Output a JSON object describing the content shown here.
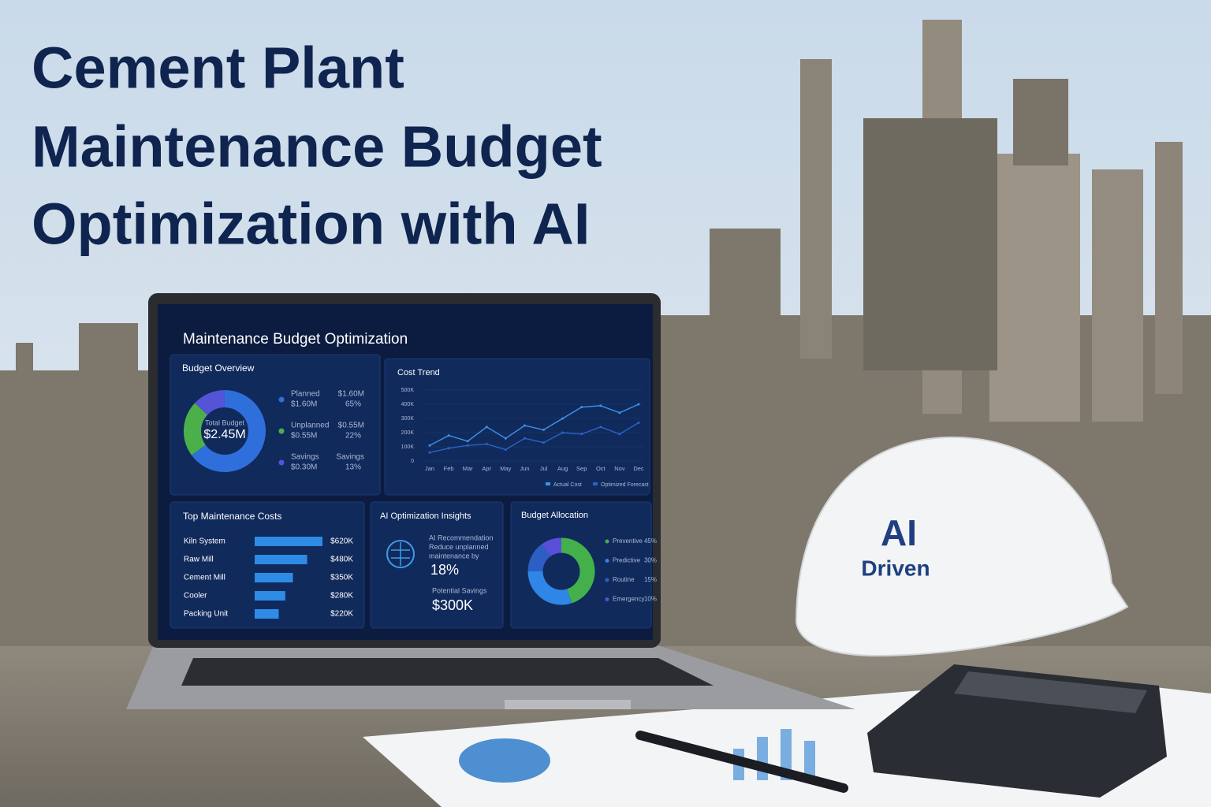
{
  "header": {
    "title_lines": [
      "Cement Plant",
      "Maintenance Budget",
      "Optimization with AI"
    ]
  },
  "dashboard": {
    "title": "Maintenance Budget Optimization",
    "budget_overview": {
      "type": "donut",
      "title": "Budget Overview",
      "center_label": "Total Budget",
      "center_value": "$2.45M",
      "items": [
        {
          "name": "Planned",
          "amount": "$1.60M",
          "right_top": "$1.60M",
          "share": 65,
          "share_label": "65%",
          "color": "#2f6fdc"
        },
        {
          "name": "Unplanned",
          "amount": "$0.55M",
          "right_top": "$0.55M",
          "share": 22,
          "share_label": "22%",
          "color": "#4cb04a"
        },
        {
          "name": "Savings",
          "amount": "$0.30M",
          "right_top": "Savings",
          "share": 13,
          "share_label": "13%",
          "color": "#5553d6"
        }
      ]
    },
    "cost_trend": {
      "type": "line",
      "title": "Cost Trend",
      "categories": [
        "Jan",
        "Feb",
        "Mar",
        "Apr",
        "May",
        "Jun",
        "Jul",
        "Aug",
        "Sep",
        "Oct",
        "Nov",
        "Dec"
      ],
      "ylim": [
        0,
        500000
      ],
      "yticks": [
        0,
        {
          "value": 100000,
          "label": "100K"
        },
        {
          "value": 200000,
          "label": "200K"
        },
        {
          "value": 300000,
          "label": "300K"
        },
        {
          "value": 400000,
          "label": "400K"
        },
        {
          "value": 500000,
          "label": "500K"
        }
      ],
      "series": [
        {
          "name": "Actual Cost",
          "color": "#3d92ec",
          "values": [
            110000,
            180000,
            140000,
            240000,
            160000,
            250000,
            220000,
            300000,
            380000,
            390000,
            340000,
            400000
          ]
        },
        {
          "name": "Optimized Forecast",
          "color": "#2a62c8",
          "values": [
            60000,
            90000,
            110000,
            120000,
            80000,
            160000,
            130000,
            200000,
            190000,
            240000,
            190000,
            270000
          ]
        }
      ]
    },
    "top_costs": {
      "type": "hbar",
      "title": "Top Maintenance Costs",
      "color": "#2e8be6",
      "categories": [
        "Kiln System",
        "Raw Mill",
        "Cement Mill",
        "Cooler",
        "Packing Unit"
      ],
      "values": [
        620000,
        480000,
        350000,
        280000,
        220000
      ],
      "value_labels": [
        "$620K",
        "$480K",
        "$350K",
        "$280K",
        "$220K"
      ]
    },
    "insights": {
      "title": "AI Optimization Insights",
      "lines": [
        "AI Recommendation",
        "Reduce unplanned",
        "maintenance by"
      ],
      "reduction": "18%",
      "savings_label": "Potential Savings",
      "savings_value": "$300K"
    },
    "allocation": {
      "type": "donut",
      "title": "Budget Allocation",
      "items": [
        {
          "name": "Preventive",
          "share": 45,
          "share_label": "45%",
          "color": "#43b04c"
        },
        {
          "name": "Predictive",
          "share": 30,
          "share_label": "30%",
          "color": "#2f86e6"
        },
        {
          "name": "Routine",
          "share": 15,
          "share_label": "15%",
          "color": "#2c5fc4"
        },
        {
          "name": "Emergency",
          "share": 10,
          "share_label": "10%",
          "color": "#5a4fd8"
        }
      ]
    }
  },
  "helmet": {
    "line1": "AI",
    "line2": "Driven"
  }
}
